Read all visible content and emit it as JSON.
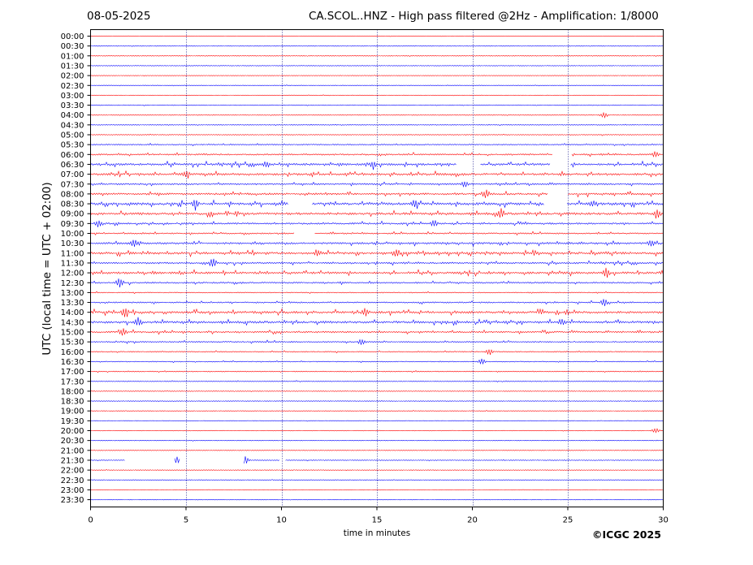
{
  "header": {
    "date": "08-05-2025",
    "title": "CA.SCOL..HNZ - High pass filtered @2Hz - Amplification: 1/8000"
  },
  "footer": {
    "copyright": "©ICGC 2025"
  },
  "chart_data": {
    "type": "line",
    "title": "CA.SCOL..HNZ - High pass filtered @2Hz - Amplification: 1/8000",
    "xlabel": "time in minutes",
    "ylabel": "UTC (local time = UTC + 02:00)",
    "xlim": [
      0,
      30
    ],
    "xticks": [
      0,
      5,
      10,
      15,
      20,
      25,
      30
    ],
    "grid_x": [
      5,
      10,
      15,
      20,
      25
    ],
    "grid_style": "dotted",
    "trace_colors": [
      "#ff0000",
      "#0000ff"
    ],
    "row_labels": [
      "00:00",
      "00:30",
      "01:00",
      "01:30",
      "02:00",
      "02:30",
      "03:00",
      "03:30",
      "04:00",
      "04:30",
      "05:00",
      "05:30",
      "06:00",
      "06:30",
      "07:00",
      "07:30",
      "08:00",
      "08:30",
      "09:00",
      "09:30",
      "10:00",
      "10:30",
      "11:00",
      "11:30",
      "12:00",
      "12:30",
      "13:00",
      "13:30",
      "14:00",
      "14:30",
      "15:00",
      "15:30",
      "16:00",
      "16:30",
      "17:00",
      "17:30",
      "18:00",
      "18:30",
      "19:00",
      "19:30",
      "20:00",
      "20:30",
      "21:00",
      "21:30",
      "22:00",
      "22:30",
      "23:00",
      "23:30"
    ],
    "activity": [
      0.2,
      0.3,
      0.3,
      0.2,
      0.2,
      0.3,
      0.3,
      0.4,
      0.4,
      0.4,
      0.5,
      0.9,
      1.4,
      2.2,
      2.2,
      1.5,
      2.0,
      2.6,
      2.4,
      1.6,
      1.2,
      2.0,
      2.4,
      1.6,
      2.2,
      1.4,
      0.7,
      1.2,
      2.4,
      2.4,
      1.6,
      1.1,
      0.8,
      0.7,
      0.6,
      0.5,
      0.4,
      0.3,
      0.3,
      0.3,
      0.3,
      0.3,
      0.3,
      0.4,
      0.3,
      0.3,
      0.2,
      0.2
    ],
    "events": [
      {
        "row": "04:00",
        "minute": 26.9,
        "amp": 4
      },
      {
        "row": "06:00",
        "minute": 29.6,
        "amp": 4
      },
      {
        "row": "06:30",
        "minute": 14.8,
        "amp": 5
      },
      {
        "row": "06:30",
        "minute": 9.2,
        "amp": 4
      },
      {
        "row": "07:00",
        "minute": 5.0,
        "amp": 4
      },
      {
        "row": "07:30",
        "minute": 19.6,
        "amp": 4
      },
      {
        "row": "08:00",
        "minute": 20.7,
        "amp": 5
      },
      {
        "row": "08:30",
        "minute": 5.5,
        "amp": 6
      },
      {
        "row": "08:30",
        "minute": 17.0,
        "amp": 5
      },
      {
        "row": "08:30",
        "minute": 26.3,
        "amp": 4
      },
      {
        "row": "09:00",
        "minute": 21.5,
        "amp": 6
      },
      {
        "row": "09:00",
        "minute": 29.7,
        "amp": 5
      },
      {
        "row": "09:30",
        "minute": 0.4,
        "amp": 5
      },
      {
        "row": "09:30",
        "minute": 18.0,
        "amp": 5
      },
      {
        "row": "10:30",
        "minute": 2.3,
        "amp": 5
      },
      {
        "row": "10:30",
        "minute": 29.4,
        "amp": 5
      },
      {
        "row": "11:00",
        "minute": 16.0,
        "amp": 5
      },
      {
        "row": "11:00",
        "minute": 11.9,
        "amp": 4
      },
      {
        "row": "11:30",
        "minute": 6.4,
        "amp": 7
      },
      {
        "row": "12:00",
        "minute": 27.0,
        "amp": 7
      },
      {
        "row": "12:30",
        "minute": 1.5,
        "amp": 6
      },
      {
        "row": "13:30",
        "minute": 26.9,
        "amp": 5
      },
      {
        "row": "14:00",
        "minute": 1.8,
        "amp": 7
      },
      {
        "row": "14:00",
        "minute": 14.4,
        "amp": 5
      },
      {
        "row": "14:30",
        "minute": 2.5,
        "amp": 5
      },
      {
        "row": "14:30",
        "minute": 24.7,
        "amp": 4
      },
      {
        "row": "15:00",
        "minute": 1.7,
        "amp": 5
      },
      {
        "row": "15:30",
        "minute": 14.2,
        "amp": 4
      },
      {
        "row": "16:00",
        "minute": 20.9,
        "amp": 4
      },
      {
        "row": "16:30",
        "minute": 20.5,
        "amp": 4
      },
      {
        "row": "20:00",
        "minute": 29.6,
        "amp": 4
      },
      {
        "row": "21:30",
        "minute": 4.5,
        "amp": 5
      },
      {
        "row": "21:30",
        "minute": 8.1,
        "amp": 5
      }
    ],
    "gaps": [
      {
        "row": "06:00",
        "from": 24.2,
        "to": 25.2
      },
      {
        "row": "06:30",
        "from": 19.2,
        "to": 20.4
      },
      {
        "row": "06:30",
        "from": 24.1,
        "to": 25.1
      },
      {
        "row": "08:00",
        "from": 24.0,
        "to": 25.0
      },
      {
        "row": "08:30",
        "from": 10.4,
        "to": 11.6
      },
      {
        "row": "08:30",
        "from": 23.8,
        "to": 24.9
      },
      {
        "row": "10:00",
        "from": 10.7,
        "to": 11.7
      },
      {
        "row": "21:30",
        "from": 1.8,
        "to": 4.4
      },
      {
        "row": "21:30",
        "from": 4.7,
        "to": 8.0
      },
      {
        "row": "21:30",
        "from": 9.9,
        "to": 10.2
      }
    ]
  }
}
